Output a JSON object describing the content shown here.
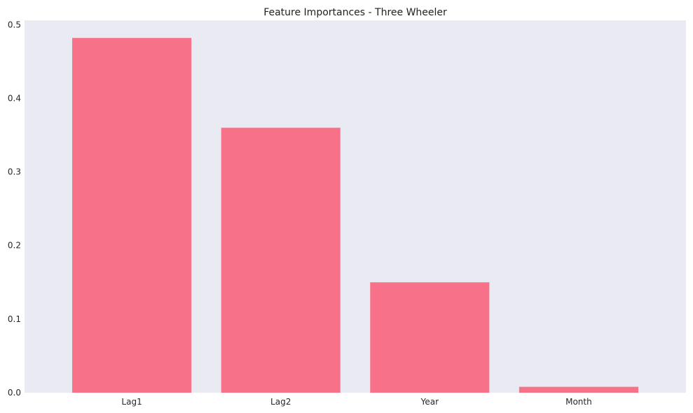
{
  "chart_data": {
    "type": "bar",
    "title": "Feature Importances - Three Wheeler",
    "xlabel": "",
    "ylabel": "",
    "categories": [
      "Lag1",
      "Lag2",
      "Year",
      "Month"
    ],
    "values": [
      0.482,
      0.36,
      0.15,
      0.008
    ],
    "ylim": [
      0,
      0.506
    ],
    "yticks": [
      "0.0",
      "0.1",
      "0.2",
      "0.3",
      "0.4",
      "0.5"
    ],
    "grid": false,
    "legend": "none",
    "colors": {
      "bar": "#f77189",
      "plot_background": "#eaeaf2",
      "page_background": "#ffffff",
      "text": "#262626"
    }
  }
}
